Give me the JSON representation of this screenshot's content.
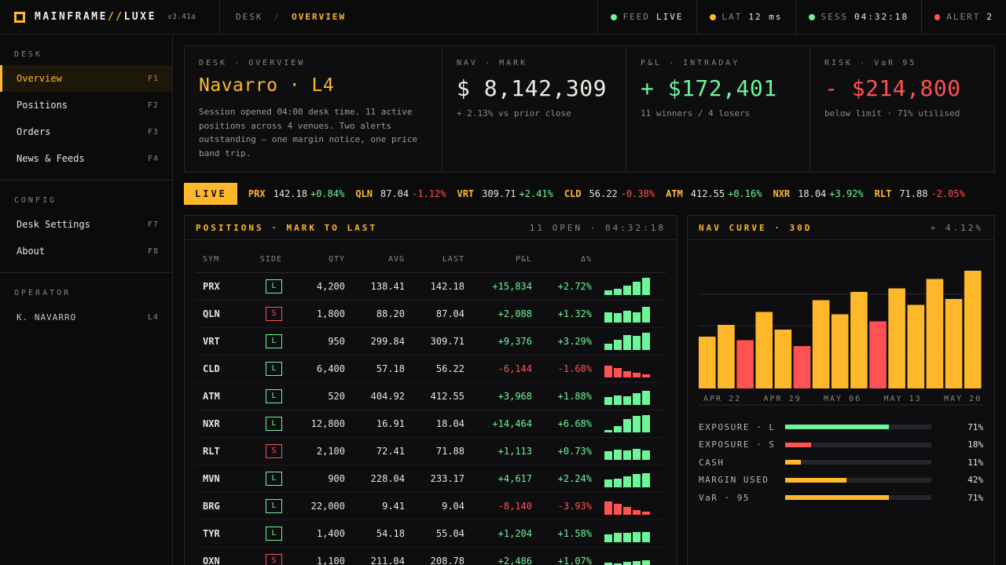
{
  "app": {
    "name_a": "MAINFRAME",
    "name_slash": "//",
    "name_b": "LUXE",
    "version": "v3.41a"
  },
  "breadcrumb": {
    "root": "DESK",
    "sep": "/",
    "current": "OVERVIEW"
  },
  "status": [
    {
      "key": "FEED",
      "value": "LIVE",
      "color": "#6ef59a"
    },
    {
      "key": "LAT",
      "value": "12 ms",
      "color": "#ffb82a"
    },
    {
      "key": "SESS",
      "value": "04:32:18",
      "color": "#6ef59a"
    },
    {
      "key": "ALERT",
      "value": "2",
      "color": "#ff5252"
    }
  ],
  "sidebar": {
    "desk_head": "DESK",
    "desk_items": [
      {
        "label": "Overview",
        "key": "F1"
      },
      {
        "label": "Positions",
        "key": "F2"
      },
      {
        "label": "Orders",
        "key": "F3"
      },
      {
        "label": "News & Feeds",
        "key": "F4"
      }
    ],
    "config_head": "CONFIG",
    "config_items": [
      {
        "label": "Desk Settings",
        "key": "F7"
      },
      {
        "label": "About",
        "key": "F8"
      }
    ],
    "operator_head": "OPERATOR",
    "operator": {
      "name": "K. NAVARRO",
      "level": "L4"
    }
  },
  "cards": {
    "desk": {
      "label": "DESK · OVERVIEW",
      "title": "Navarro · L4",
      "desc": "Session opened 04:00 desk time. 11 active positions across 4 venues. Two alerts outstanding — one margin notice, one price band trip."
    },
    "nav": {
      "label": "NAV · MARK",
      "value": "$ 8,142,309",
      "sub": "+ 2.13% vs prior close"
    },
    "pnl": {
      "label": "P&L · INTRADAY",
      "value": "+ $172,401",
      "sub": "11 winners / 4 losers"
    },
    "risk": {
      "label": "RISK · VaR 95",
      "value": "- $214,800",
      "sub": "below limit · 71% utilised"
    }
  },
  "ticker": {
    "live": "LIVE",
    "items": [
      {
        "sym": "PRX",
        "px": "142.18",
        "chg": "+0.84%"
      },
      {
        "sym": "QLN",
        "px": "87.04",
        "chg": "-1.12%"
      },
      {
        "sym": "VRT",
        "px": "309.71",
        "chg": "+2.41%"
      },
      {
        "sym": "CLD",
        "px": "56.22",
        "chg": "-0.38%"
      },
      {
        "sym": "ATM",
        "px": "412.55",
        "chg": "+0.16%"
      },
      {
        "sym": "NXR",
        "px": "18.04",
        "chg": "+3.92%"
      },
      {
        "sym": "RLT",
        "px": "71.88",
        "chg": "-2.05%"
      }
    ]
  },
  "positions": {
    "title": "POSITIONS · MARK TO LAST",
    "meta": "11 OPEN · 04:32:18",
    "headers": {
      "sym": "SYM",
      "side": "SIDE",
      "qty": "QTY",
      "avg": "AVG",
      "last": "LAST",
      "pnl": "P&L",
      "pct": "Δ%"
    },
    "rows": [
      {
        "sym": "PRX",
        "side": "L",
        "qty": "4,200",
        "avg": "138.41",
        "last": "142.18",
        "pnl": "+15,834",
        "pct": "+2.72%",
        "spark": [
          0.25,
          0.35,
          0.55,
          0.75,
          1.0
        ]
      },
      {
        "sym": "QLN",
        "side": "S",
        "qty": "1,800",
        "avg": "88.20",
        "last": "87.04",
        "pnl": "+2,088",
        "pct": "+1.32%",
        "spark": [
          0.6,
          0.55,
          0.7,
          0.6,
          0.9
        ]
      },
      {
        "sym": "VRT",
        "side": "L",
        "qty": "950",
        "avg": "299.84",
        "last": "309.71",
        "pnl": "+9,376",
        "pct": "+3.29%",
        "spark": [
          0.35,
          0.6,
          0.85,
          0.8,
          1.0
        ]
      },
      {
        "sym": "CLD",
        "side": "L",
        "qty": "6,400",
        "avg": "57.18",
        "last": "56.22",
        "pnl": "-6,144",
        "pct": "-1.68%",
        "spark": [
          0.7,
          0.55,
          0.35,
          0.25,
          0.18
        ]
      },
      {
        "sym": "ATM",
        "side": "L",
        "qty": "520",
        "avg": "404.92",
        "last": "412.55",
        "pnl": "+3,968",
        "pct": "+1.88%",
        "spark": [
          0.45,
          0.55,
          0.5,
          0.7,
          0.8
        ]
      },
      {
        "sym": "NXR",
        "side": "L",
        "qty": "12,800",
        "avg": "16.91",
        "last": "18.04",
        "pnl": "+14,464",
        "pct": "+6.68%",
        "spark": [
          0.15,
          0.35,
          0.75,
          0.95,
          1.0
        ]
      },
      {
        "sym": "RLT",
        "side": "S",
        "qty": "2,100",
        "avg": "72.41",
        "last": "71.88",
        "pnl": "+1,113",
        "pct": "+0.73%",
        "spark": [
          0.5,
          0.6,
          0.55,
          0.65,
          0.55
        ]
      },
      {
        "sym": "MVN",
        "side": "L",
        "qty": "900",
        "avg": "228.04",
        "last": "233.17",
        "pnl": "+4,617",
        "pct": "+2.24%",
        "spark": [
          0.45,
          0.5,
          0.65,
          0.75,
          0.8
        ]
      },
      {
        "sym": "BRG",
        "side": "L",
        "qty": "22,000",
        "avg": "9.41",
        "last": "9.04",
        "pnl": "-8,140",
        "pct": "-3.93%",
        "spark": [
          0.75,
          0.65,
          0.45,
          0.25,
          0.18
        ]
      },
      {
        "sym": "TYR",
        "side": "L",
        "qty": "1,400",
        "avg": "54.18",
        "last": "55.04",
        "pnl": "+1,204",
        "pct": "+1.58%",
        "spark": [
          0.45,
          0.55,
          0.55,
          0.6,
          0.6
        ]
      },
      {
        "sym": "OXN",
        "side": "S",
        "qty": "1,100",
        "avg": "211.04",
        "last": "208.78",
        "pnl": "+2,486",
        "pct": "+1.07%",
        "spark": [
          0.4,
          0.35,
          0.45,
          0.5,
          0.55
        ]
      }
    ]
  },
  "nav_curve": {
    "title": "NAV CURVE · 30D",
    "change": "+ 4.12%"
  },
  "chart_data": {
    "type": "bar",
    "title": "NAV CURVE · 30D",
    "x_tick_labels": [
      "APR 22",
      "APR 29",
      "MAY 06",
      "MAY 13",
      "MAY 20"
    ],
    "values": [
      0.44,
      0.54,
      0.41,
      0.65,
      0.5,
      0.36,
      0.75,
      0.63,
      0.82,
      0.57,
      0.85,
      0.71,
      0.93,
      0.76,
      1.0
    ],
    "down_days": [
      2,
      5,
      9
    ],
    "colors": {
      "up": "#ffb82a",
      "down": "#ff5252"
    },
    "grid": true
  },
  "exposure": [
    {
      "label": "EXPOSURE · L",
      "pct": 71,
      "pct_label": "71%",
      "color": "#6ef59a"
    },
    {
      "label": "EXPOSURE · S",
      "pct": 18,
      "pct_label": "18%",
      "color": "#ff5252"
    },
    {
      "label": "CASH",
      "pct": 11,
      "pct_label": "11%",
      "color": "#ffb82a"
    },
    {
      "label": "MARGIN USED",
      "pct": 42,
      "pct_label": "42%",
      "color": "#ffb82a"
    },
    {
      "label": "VaR · 95",
      "pct": 71,
      "pct_label": "71%",
      "color": "#ffb82a"
    }
  ]
}
